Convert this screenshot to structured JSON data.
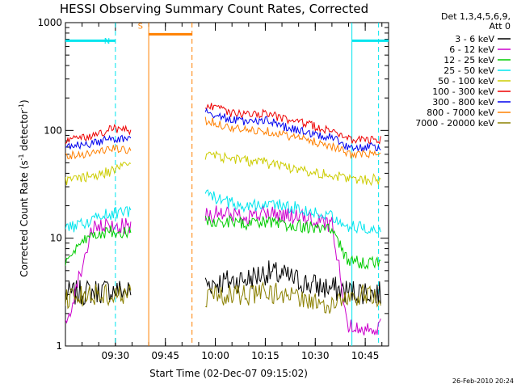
{
  "chart_data": {
    "type": "line",
    "title": "HESSI Observing Summary Count Rates, Corrected",
    "xlabel": "Start Time (02-Dec-07 09:15:02)",
    "ylabel_main": "Corrected Count Rate (s",
    "ylabel_sup1": "-1",
    "ylabel_mid": " detector",
    "ylabel_sup2": "-1",
    "ylabel_end": ")",
    "yscale": "log",
    "ylim": [
      1,
      1000
    ],
    "xlim_minutes": [
      0,
      97
    ],
    "x_ticks": [
      "09:30",
      "09:45",
      "10:00",
      "10:15",
      "10:30",
      "10:45"
    ],
    "x_tick_minutes": [
      15,
      30,
      45,
      60,
      75,
      90
    ],
    "y_ticks": [
      "1",
      "10",
      "100",
      "1000"
    ],
    "y_tick_values": [
      1,
      10,
      100,
      1000
    ],
    "legend_header1": "Det 1,3,4,5,6,9,",
    "legend_header2": "Att 0",
    "legend_placement": "right",
    "series": [
      {
        "name": "3 - 6 keV",
        "color": "#000000",
        "points": [
          [
            0,
            3
          ],
          [
            8,
            3.2
          ],
          [
            14,
            3.3
          ],
          [
            20,
            3.2
          ],
          [
            22,
            null
          ],
          [
            40,
            null
          ],
          [
            42,
            3.8
          ],
          [
            50,
            4
          ],
          [
            55,
            4.2
          ],
          [
            60,
            4.8
          ],
          [
            65,
            4.5
          ],
          [
            70,
            4
          ],
          [
            75,
            3.6
          ],
          [
            80,
            3.4
          ],
          [
            85,
            3.2
          ],
          [
            90,
            3.2
          ],
          [
            95,
            3
          ]
        ]
      },
      {
        "name": "6 - 12 keV",
        "color": "#cc00cc",
        "points": [
          [
            0,
            1.5
          ],
          [
            8,
            12
          ],
          [
            14,
            13
          ],
          [
            20,
            13
          ],
          [
            22,
            null
          ],
          [
            40,
            null
          ],
          [
            42,
            17
          ],
          [
            50,
            16.5
          ],
          [
            55,
            16
          ],
          [
            60,
            17
          ],
          [
            65,
            16.5
          ],
          [
            70,
            15.5
          ],
          [
            75,
            14.5
          ],
          [
            80,
            13.5
          ],
          [
            85,
            1.5
          ],
          [
            90,
            1.5
          ],
          [
            95,
            1.5
          ]
        ]
      },
      {
        "name": "12 - 25 keV",
        "color": "#00cc00",
        "points": [
          [
            0,
            6
          ],
          [
            8,
            11
          ],
          [
            14,
            11.5
          ],
          [
            20,
            11.5
          ],
          [
            22,
            null
          ],
          [
            40,
            null
          ],
          [
            42,
            14.5
          ],
          [
            50,
            14
          ],
          [
            55,
            13.5
          ],
          [
            60,
            14
          ],
          [
            65,
            13.5
          ],
          [
            70,
            13
          ],
          [
            75,
            12.5
          ],
          [
            80,
            12
          ],
          [
            85,
            6
          ],
          [
            90,
            6
          ],
          [
            95,
            6
          ]
        ]
      },
      {
        "name": "25 - 50 keV",
        "color": "#00e5ee",
        "points": [
          [
            0,
            12
          ],
          [
            8,
            15
          ],
          [
            14,
            17
          ],
          [
            20,
            18
          ],
          [
            22,
            null
          ],
          [
            40,
            null
          ],
          [
            42,
            25
          ],
          [
            50,
            21
          ],
          [
            55,
            20
          ],
          [
            60,
            21
          ],
          [
            65,
            20
          ],
          [
            70,
            19
          ],
          [
            75,
            17
          ],
          [
            80,
            16.5
          ],
          [
            85,
            13
          ],
          [
            90,
            12.5
          ],
          [
            95,
            12.5
          ]
        ]
      },
      {
        "name": "50 - 100 keV",
        "color": "#cccc00",
        "points": [
          [
            0,
            34
          ],
          [
            8,
            38
          ],
          [
            14,
            42
          ],
          [
            20,
            48
          ],
          [
            22,
            null
          ],
          [
            40,
            null
          ],
          [
            42,
            60
          ],
          [
            50,
            55
          ],
          [
            55,
            52
          ],
          [
            60,
            50
          ],
          [
            65,
            47
          ],
          [
            70,
            44
          ],
          [
            75,
            41
          ],
          [
            80,
            38
          ],
          [
            85,
            36
          ],
          [
            90,
            35
          ],
          [
            95,
            35
          ]
        ]
      },
      {
        "name": "100 - 300 keV",
        "color": "#ee0000",
        "points": [
          [
            0,
            80
          ],
          [
            8,
            88
          ],
          [
            14,
            105
          ],
          [
            20,
            100
          ],
          [
            22,
            null
          ],
          [
            40,
            null
          ],
          [
            42,
            170
          ],
          [
            50,
            145
          ],
          [
            55,
            140
          ],
          [
            60,
            145
          ],
          [
            65,
            130
          ],
          [
            70,
            120
          ],
          [
            75,
            108
          ],
          [
            80,
            100
          ],
          [
            85,
            82
          ],
          [
            90,
            82
          ],
          [
            95,
            82
          ]
        ]
      },
      {
        "name": "300 - 800 keV",
        "color": "#0000ee",
        "points": [
          [
            0,
            70
          ],
          [
            8,
            75
          ],
          [
            14,
            85
          ],
          [
            20,
            80
          ],
          [
            22,
            null
          ],
          [
            40,
            null
          ],
          [
            42,
            150
          ],
          [
            50,
            125
          ],
          [
            55,
            120
          ],
          [
            60,
            125
          ],
          [
            65,
            110
          ],
          [
            70,
            100
          ],
          [
            75,
            92
          ],
          [
            80,
            86
          ],
          [
            85,
            70
          ],
          [
            90,
            70
          ],
          [
            95,
            70
          ]
        ]
      },
      {
        "name": "800 - 7000 keV",
        "color": "#ff8000",
        "points": [
          [
            0,
            58
          ],
          [
            8,
            62
          ],
          [
            14,
            68
          ],
          [
            20,
            64
          ],
          [
            22,
            null
          ],
          [
            40,
            null
          ],
          [
            42,
            125
          ],
          [
            50,
            105
          ],
          [
            55,
            100
          ],
          [
            60,
            100
          ],
          [
            65,
            92
          ],
          [
            70,
            85
          ],
          [
            75,
            78
          ],
          [
            80,
            72
          ],
          [
            85,
            60
          ],
          [
            90,
            60
          ],
          [
            95,
            60
          ]
        ]
      },
      {
        "name": "7000 - 20000 keV",
        "color": "#8b8000",
        "points": [
          [
            0,
            2.8
          ],
          [
            8,
            3
          ],
          [
            14,
            3
          ],
          [
            20,
            3
          ],
          [
            22,
            null
          ],
          [
            40,
            null
          ],
          [
            42,
            2.8
          ],
          [
            50,
            3
          ],
          [
            55,
            3
          ],
          [
            60,
            3.2
          ],
          [
            65,
            3
          ],
          [
            70,
            2.8
          ],
          [
            75,
            2.5
          ],
          [
            80,
            2.5
          ],
          [
            85,
            2.8
          ],
          [
            90,
            3
          ],
          [
            95,
            2.8
          ]
        ]
      }
    ],
    "annotations": [
      {
        "label": "N",
        "color": "#00e5ee"
      },
      {
        "label": "S",
        "color": "#ff8000"
      }
    ],
    "annotation_bars": [
      {
        "name": "night",
        "color": "#00e5ee",
        "segments": [
          [
            0,
            15
          ],
          [
            86,
            97
          ]
        ],
        "level": 680
      },
      {
        "name": "saa",
        "color": "#ff8000",
        "segments": [
          [
            25,
            38
          ]
        ],
        "level": 780
      }
    ],
    "vlines": [
      {
        "name": "night-start",
        "color": "#00e5ee",
        "style": "dashed",
        "x": 15
      },
      {
        "name": "saa-start",
        "color": "#ff8000",
        "style": "solid",
        "x": 25
      },
      {
        "name": "saa-end",
        "color": "#ff8000",
        "style": "dashed",
        "x": 38
      },
      {
        "name": "night-end",
        "color": "#00e5ee",
        "style": "solid",
        "x": 86
      },
      {
        "name": "night-end-dashed",
        "color": "#00e5ee",
        "style": "dashed",
        "x": 94
      }
    ],
    "footer_date": "26-Feb-2010 20:24"
  }
}
